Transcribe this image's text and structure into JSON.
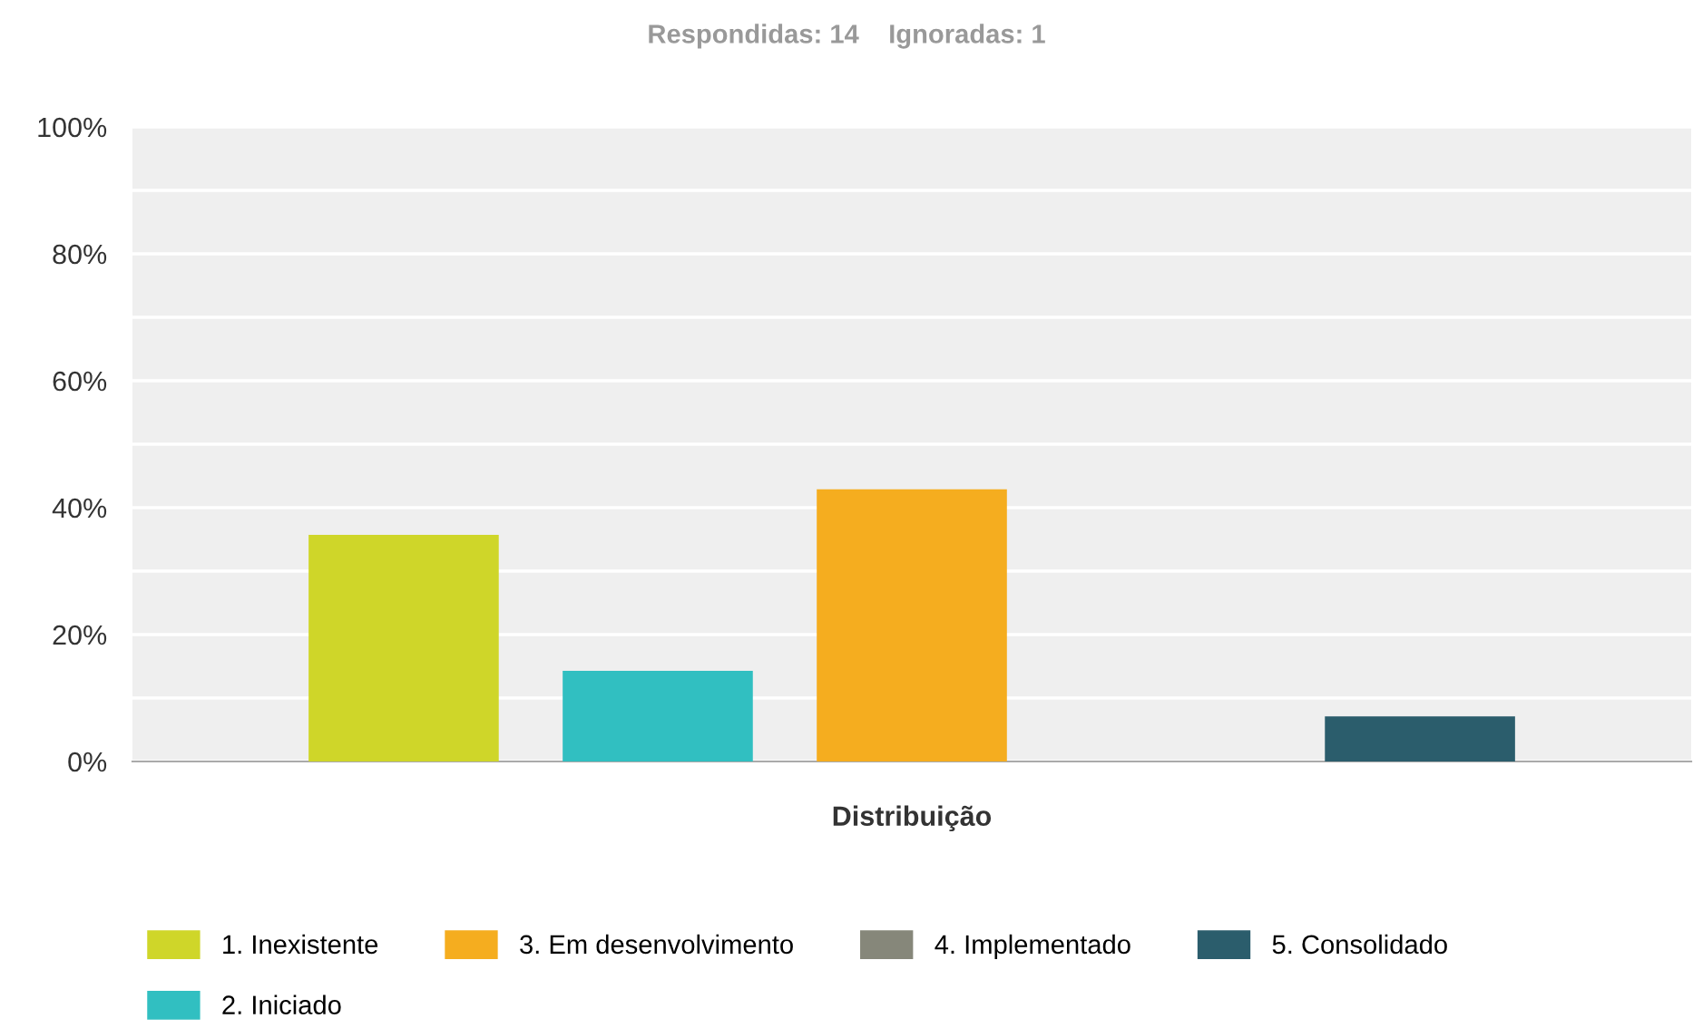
{
  "chart_data": {
    "type": "bar",
    "title": "Respondidas: 14    Ignoradas: 1",
    "xlabel": "Distribuição",
    "categories": [
      null
    ],
    "series": [
      {
        "name": "1. Inexistente",
        "color": "#cfd629",
        "values": [
          35.7
        ]
      },
      {
        "name": "2. Iniciado",
        "color": "#31bfc1",
        "values": [
          14.3
        ]
      },
      {
        "name": "3. Em desenvolvimento",
        "color": "#f5ad1f",
        "values": [
          42.9
        ]
      },
      {
        "name": "4. Implementado",
        "color": "#86877a",
        "values": [
          0
        ]
      },
      {
        "name": "5. Consolidado",
        "color": "#2b5d6c",
        "values": [
          7.1
        ]
      }
    ],
    "ylim": [
      0,
      100
    ],
    "yticks": [
      {
        "value": 0,
        "label": "0%"
      },
      {
        "value": 10,
        "label": null
      },
      {
        "value": 20,
        "label": "20%"
      },
      {
        "value": 30,
        "label": null
      },
      {
        "value": 40,
        "label": "40%"
      },
      {
        "value": 50,
        "label": null
      },
      {
        "value": 60,
        "label": "60%"
      },
      {
        "value": 70,
        "label": null
      },
      {
        "value": 80,
        "label": "80%"
      },
      {
        "value": 90,
        "label": null
      },
      {
        "value": 100,
        "label": "100%"
      }
    ],
    "grid": "y",
    "legend": "bottom"
  }
}
